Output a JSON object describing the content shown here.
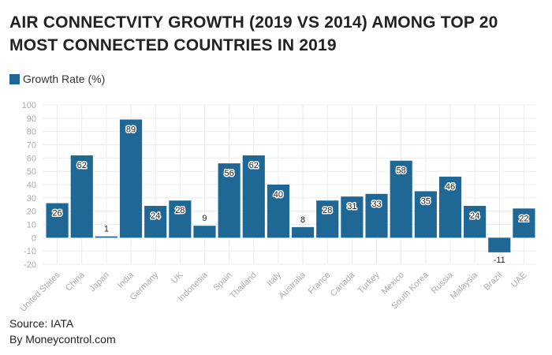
{
  "chart_data": {
    "type": "bar",
    "title": "AIR CONNECTVITY GROWTH (2019 VS 2014) AMONG TOP 20 MOST CONNECTED COUNTRIES IN 2019",
    "categories": [
      "United States",
      "China",
      "Japan",
      "India",
      "Germany",
      "UK",
      "Indonesia",
      "Spain",
      "Thailand",
      "Italy",
      "Australia",
      "France",
      "Canada",
      "Turkey",
      "Mexico",
      "South Korea",
      "Russia",
      "Malaysia",
      "Brazil",
      "UAE"
    ],
    "series": [
      {
        "name": "Growth Rate (%)",
        "values": [
          26,
          62,
          1,
          89,
          24,
          28,
          9,
          56,
          62,
          40,
          8,
          28,
          31,
          33,
          58,
          35,
          46,
          24,
          -11,
          22
        ]
      }
    ],
    "ylim": [
      -20,
      100
    ],
    "yticks": [
      -20,
      -10,
      0,
      10,
      20,
      30,
      40,
      50,
      60,
      70,
      80,
      90,
      100
    ],
    "grid": true,
    "legend": "top-left",
    "colors": {
      "bar": "#1f6896"
    }
  },
  "footer": {
    "source": "Source: IATA",
    "credit": "By Moneycontrol.com"
  }
}
